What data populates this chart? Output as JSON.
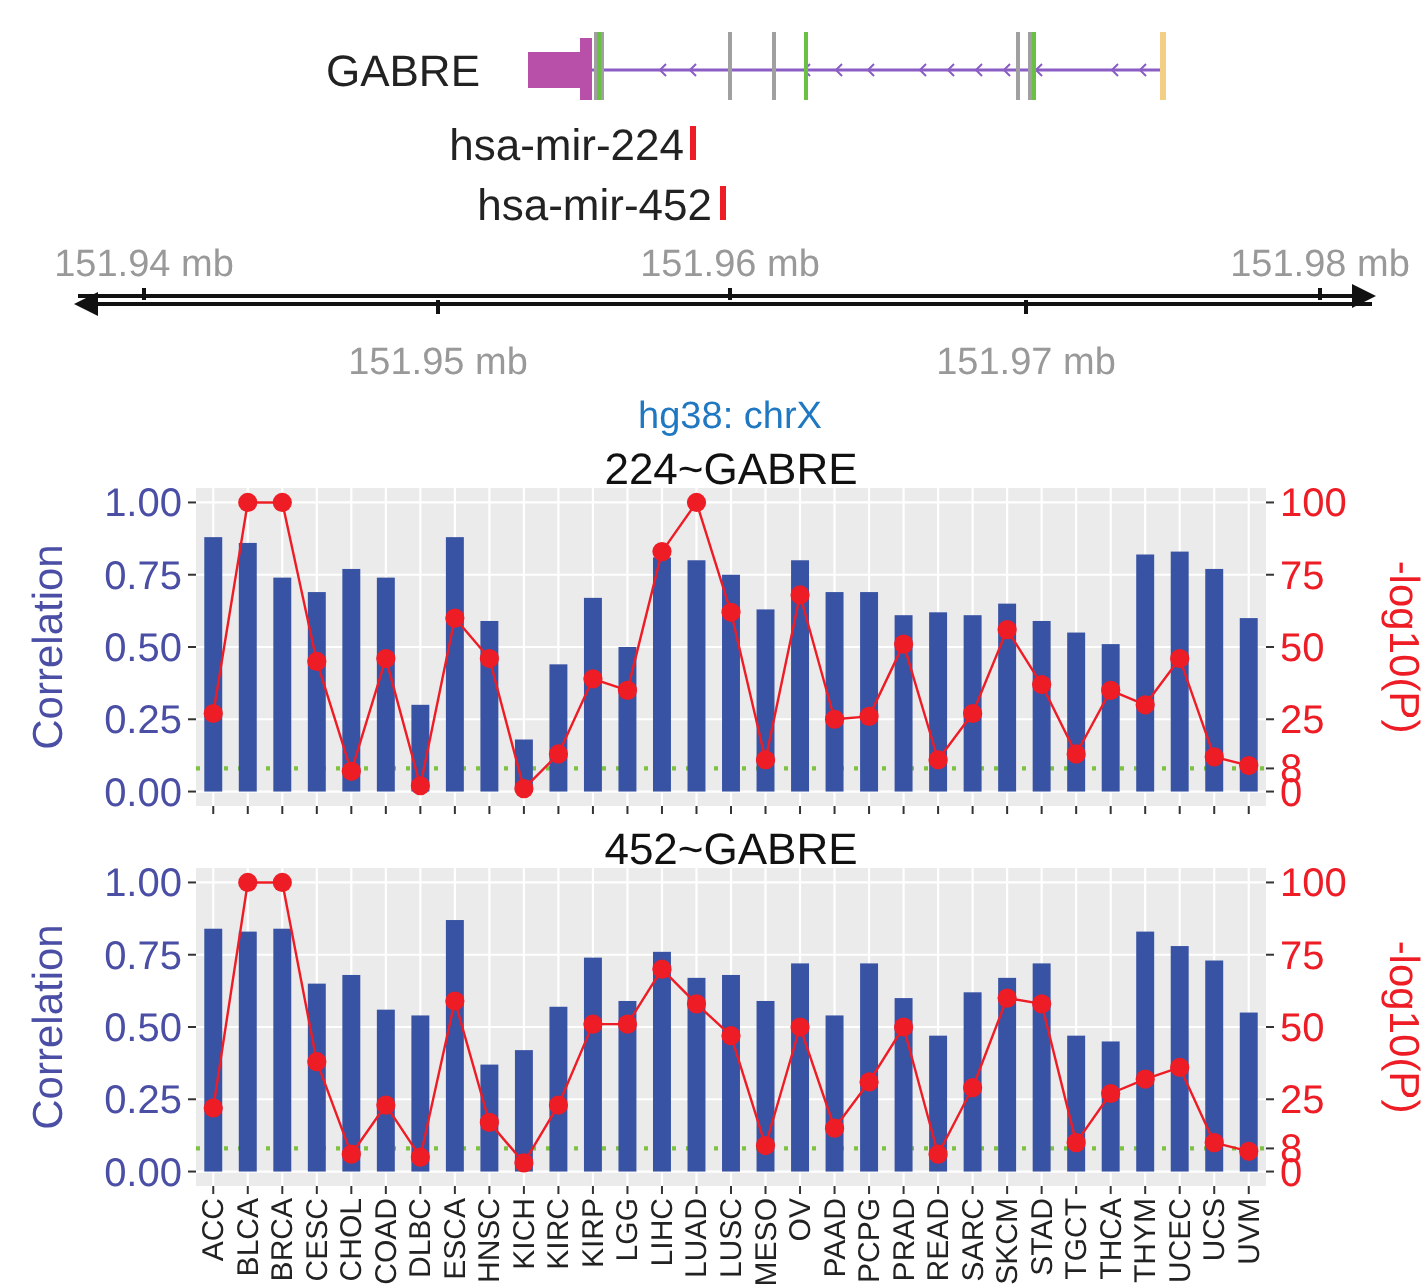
{
  "chart_data": [
    {
      "type": "other",
      "annotations": [
        "GABRE",
        "hsa-mir-224",
        "hsa-mir-452",
        "151.94 mb",
        "151.95 mb",
        "151.96 mb",
        "151.97 mb",
        "151.98 mb"
      ],
      "xlabel": "hg38: chrX"
    },
    {
      "type": "bar",
      "title": "224~GABRE",
      "ylabel": "Correlation",
      "y2label": "-log10(P)",
      "tick_labels": "y",
      "grid": true,
      "categories": [
        null,
        null,
        null,
        null,
        null,
        null,
        null,
        null,
        null,
        null,
        null,
        null,
        null,
        null,
        null,
        null,
        null,
        null,
        null,
        null,
        null,
        null,
        null,
        null,
        null,
        null,
        null,
        null,
        null,
        null,
        null
      ],
      "ylim": [
        -0.05,
        1.05
      ],
      "yticks": [
        {
          "value": 0,
          "label": "0.00"
        },
        {
          "value": 0.25,
          "label": "0.25"
        },
        {
          "value": 0.5,
          "label": "0.50"
        },
        {
          "value": 0.75,
          "label": "0.75"
        },
        {
          "value": 1,
          "label": "1.00"
        }
      ],
      "y2lim": [
        -5,
        105
      ],
      "y2ticks": [
        0,
        8,
        25,
        50,
        75,
        100
      ],
      "ref_lines": [
        {
          "axis": "y2",
          "value": 8,
          "color": "#7fc241",
          "line_style": "dotted"
        }
      ],
      "series": [
        {
          "type": "bar",
          "color": "#3953a4",
          "values": [
            0.88,
            0.86,
            0.74,
            0.69,
            0.77,
            0.74,
            0.3,
            0.88,
            0.59,
            0.18,
            0.44,
            0.67,
            0.5,
            0.81,
            0.8,
            0.75,
            0.63,
            0.8,
            0.69,
            0.69,
            0.61,
            0.62,
            0.61,
            0.65,
            0.59,
            0.55,
            0.51,
            0.82,
            0.83,
            0.77,
            0.6
          ]
        },
        {
          "type": "line",
          "axis": "y2",
          "color": "#ee1c25",
          "marker": "circle",
          "line_style": "solid",
          "values": [
            27,
            100,
            100,
            45,
            7,
            46,
            2,
            60,
            46,
            1,
            13,
            39,
            35,
            83,
            100,
            62,
            11,
            68,
            25,
            26,
            51,
            11,
            27,
            56,
            37,
            13,
            35,
            30,
            46,
            12,
            9
          ]
        }
      ]
    },
    {
      "type": "bar",
      "title": "452~GABRE",
      "ylabel": "Correlation",
      "y2label": "-log10(P)",
      "grid": true,
      "categories": [
        "ACC",
        "BLCA",
        "BRCA",
        "CESC",
        "CHOL",
        "COAD",
        "DLBC",
        "ESCA",
        "HNSC",
        "KICH",
        "KIRC",
        "KIRP",
        "LGG",
        "LIHC",
        "LUAD",
        "LUSC",
        "MESO",
        "OV",
        "PAAD",
        "PCPG",
        "PRAD",
        "READ",
        "SARC",
        "SKCM",
        "STAD",
        "TGCT",
        "THCA",
        "THYM",
        "UCEC",
        "UCS",
        "UVM"
      ],
      "ylim": [
        -0.05,
        1.05
      ],
      "yticks": [
        {
          "value": 0,
          "label": "0.00"
        },
        {
          "value": 0.25,
          "label": "0.25"
        },
        {
          "value": 0.5,
          "label": "0.50"
        },
        {
          "value": 0.75,
          "label": "0.75"
        },
        {
          "value": 1,
          "label": "1.00"
        }
      ],
      "y2lim": [
        -5,
        105
      ],
      "y2ticks": [
        0,
        8,
        25,
        50,
        75,
        100
      ],
      "ref_lines": [
        {
          "axis": "y2",
          "value": 8,
          "color": "#7fc241",
          "line_style": "dotted"
        }
      ],
      "series": [
        {
          "type": "bar",
          "color": "#3953a4",
          "values": [
            0.84,
            0.83,
            0.84,
            0.65,
            0.68,
            0.56,
            0.54,
            0.87,
            0.37,
            0.42,
            0.57,
            0.74,
            0.59,
            0.76,
            0.67,
            0.68,
            0.59,
            0.72,
            0.54,
            0.72,
            0.6,
            0.47,
            0.62,
            0.67,
            0.72,
            0.47,
            0.45,
            0.83,
            0.78,
            0.73,
            0.55
          ]
        },
        {
          "type": "line",
          "axis": "y2",
          "color": "#ee1c25",
          "marker": "circle",
          "line_style": "solid",
          "values": [
            22,
            100,
            100,
            38,
            6,
            23,
            5,
            59,
            17,
            3,
            23,
            51,
            51,
            70,
            58,
            47,
            9,
            50,
            15,
            31,
            50,
            6,
            29,
            60,
            58,
            10,
            27,
            32,
            36,
            10,
            7
          ]
        }
      ]
    }
  ]
}
